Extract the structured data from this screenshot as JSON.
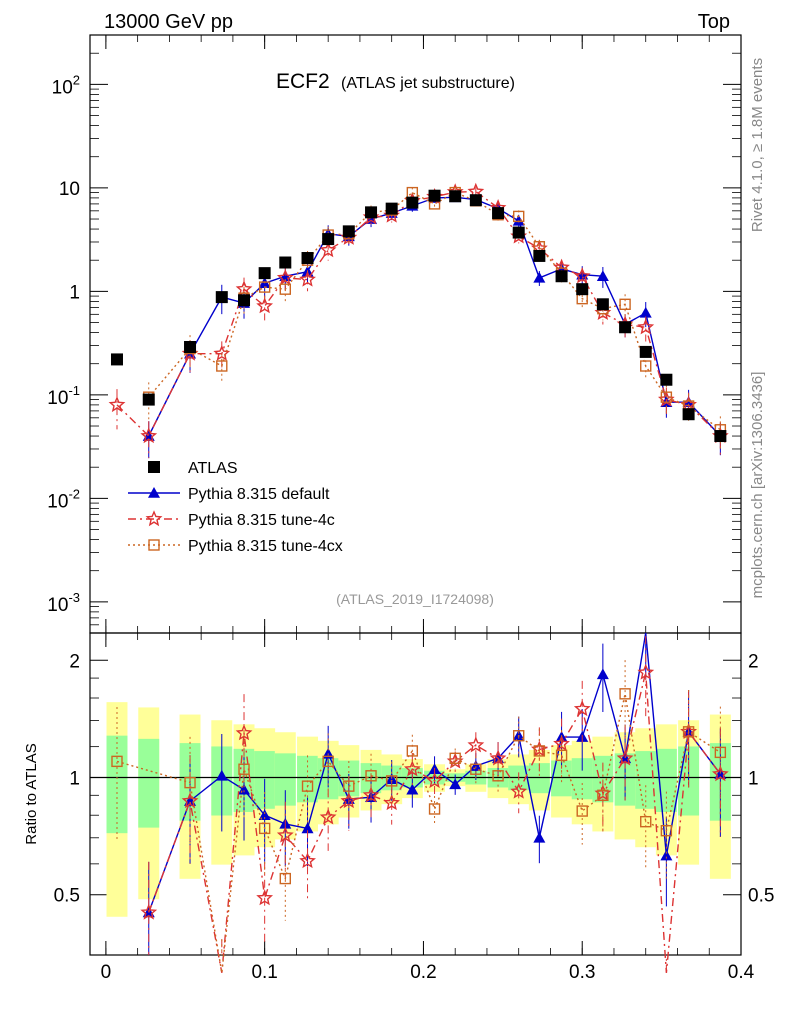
{
  "header": {
    "left_title": "13000 GeV pp",
    "right_title": "Top"
  },
  "side_labels": {
    "rivet": "Rivet 4.1.0, ≥ 1.8M events",
    "mcplots": "mcplots.cern.ch [arXiv:1306.3436]"
  },
  "chart_data": {
    "type": "line",
    "title": "ECF2",
    "subtitle": "(ATLAS jet substructure)",
    "analysis_tag": "(ATLAS_2019_I1724098)",
    "xlim": [
      -0.01,
      0.4
    ],
    "ylim": [
      0.0005,
      300
    ],
    "yscale": "log",
    "x_ticks": [
      "0",
      "0.1",
      "0.2",
      "0.3",
      "0.4"
    ],
    "x_tick_values": [
      0,
      0.1,
      0.2,
      0.3,
      0.4
    ],
    "y_tick_labels": [
      "10^-3",
      "10^-2",
      "10^-1",
      "1",
      "10",
      "10^2"
    ],
    "ratio_ylabel": "Ratio to ATLAS",
    "ratio_ylim": [
      0.35,
      2.35
    ],
    "ratio_ticks": [
      "0.5",
      "1",
      "2"
    ],
    "ratio_tick_values": [
      0.5,
      1,
      2
    ],
    "legend": [
      "ATLAS",
      "Pythia 8.315 default",
      "Pythia 8.315 tune-4c",
      "Pythia 8.315 tune-4cx"
    ],
    "series": [
      {
        "name": "ATLAS",
        "color": "#000000",
        "x": [
          0.007,
          0.027,
          0.053,
          0.073,
          0.087,
          0.1,
          0.113,
          0.127,
          0.14,
          0.153,
          0.167,
          0.18,
          0.193,
          0.207,
          0.22,
          0.233,
          0.247,
          0.26,
          0.273,
          0.287,
          0.3,
          0.313,
          0.327,
          0.34,
          0.353,
          0.367,
          0.387
        ],
        "y": [
          0.22,
          0.09,
          0.29,
          0.88,
          0.82,
          1.5,
          1.9,
          2.1,
          3.2,
          3.8,
          5.8,
          6.3,
          7.2,
          8.4,
          8.3,
          7.6,
          5.7,
          3.7,
          2.2,
          1.4,
          1.05,
          0.75,
          0.45,
          0.26,
          0.14,
          0.065,
          0.04
        ]
      },
      {
        "name": "Pythia 8.315 default",
        "color": "#0000cc",
        "x": [
          0.027,
          0.053,
          0.073,
          0.087,
          0.1,
          0.113,
          0.127,
          0.14,
          0.153,
          0.167,
          0.18,
          0.193,
          0.207,
          0.22,
          0.233,
          0.247,
          0.26,
          0.273,
          0.287,
          0.3,
          0.313,
          0.327,
          0.34,
          0.353,
          0.367,
          0.387
        ],
        "y": [
          0.04,
          0.25,
          0.88,
          0.77,
          1.2,
          1.4,
          1.55,
          3.6,
          3.4,
          5.0,
          5.7,
          6.7,
          8.0,
          8.1,
          7.7,
          6.3,
          4.8,
          1.35,
          1.65,
          1.45,
          1.4,
          0.48,
          0.62,
          0.085,
          0.085,
          0.04
        ]
      },
      {
        "name": "Pythia 8.315 tune-4c",
        "color": "#dd3333",
        "x": [
          0.007,
          0.027,
          0.053,
          0.073,
          0.087,
          0.1,
          0.113,
          0.127,
          0.14,
          0.153,
          0.167,
          0.18,
          0.193,
          0.207,
          0.22,
          0.233,
          0.247,
          0.26,
          0.273,
          0.287,
          0.3,
          0.313,
          0.327,
          0.34,
          0.353,
          0.367,
          0.387
        ],
        "y": [
          0.08,
          0.04,
          0.25,
          0.25,
          1.05,
          0.72,
          1.35,
          1.3,
          2.5,
          3.3,
          5.2,
          5.4,
          7.5,
          8.2,
          9.1,
          9.2,
          6.4,
          3.4,
          2.6,
          1.7,
          1.4,
          0.62,
          0.48,
          0.45,
          0.09,
          0.08,
          0.04
        ]
      },
      {
        "name": "Pythia 8.315 tune-4cx",
        "color": "#cc6622",
        "x": [
          0.027,
          0.053,
          0.073,
          0.087,
          0.1,
          0.113,
          0.127,
          0.14,
          0.153,
          0.167,
          0.18,
          0.193,
          0.207,
          0.22,
          0.233,
          0.247,
          0.26,
          0.273,
          0.287,
          0.3,
          0.313,
          0.327,
          0.34,
          0.353,
          0.367,
          0.387
        ],
        "y": [
          0.095,
          0.28,
          0.19,
          0.86,
          1.1,
          1.05,
          2.0,
          3.5,
          3.6,
          5.8,
          6.1,
          9.0,
          7.0,
          9.0,
          7.5,
          5.5,
          5.3,
          2.7,
          1.5,
          0.85,
          0.68,
          0.75,
          0.19,
          0.095,
          0.078,
          0.046
        ]
      }
    ],
    "ratio_series": [
      {
        "name": "Pythia 8.315 default",
        "color": "#0000cc",
        "x": [
          0.027,
          0.053,
          0.073,
          0.087,
          0.1,
          0.113,
          0.127,
          0.14,
          0.153,
          0.167,
          0.18,
          0.193,
          0.207,
          0.22,
          0.233,
          0.247,
          0.26,
          0.273,
          0.287,
          0.3,
          0.313,
          0.327,
          0.34,
          0.353,
          0.367,
          0.387
        ],
        "y": [
          0.45,
          0.87,
          1.01,
          0.93,
          0.8,
          0.76,
          0.74,
          1.15,
          0.88,
          0.89,
          0.99,
          0.93,
          1.05,
          0.96,
          1.07,
          1.12,
          1.28,
          0.7,
          1.27,
          1.27,
          1.84,
          1.12,
          2.36,
          0.63,
          1.31,
          1.02
        ]
      },
      {
        "name": "Pythia 8.315 tune-4c",
        "color": "#dd3333",
        "x": [
          0.027,
          0.053,
          0.073,
          0.087,
          0.1,
          0.113,
          0.127,
          0.14,
          0.153,
          0.167,
          0.18,
          0.193,
          0.207,
          0.22,
          0.233,
          0.247,
          0.26,
          0.273,
          0.287,
          0.3,
          0.313,
          0.327,
          0.34,
          0.353,
          0.367,
          0.387
        ],
        "y": [
          0.45,
          0.87,
          0.3,
          1.3,
          0.49,
          0.71,
          0.61,
          0.79,
          0.87,
          0.9,
          0.86,
          1.05,
          0.98,
          1.1,
          1.21,
          1.12,
          0.92,
          1.18,
          1.22,
          1.5,
          0.91,
          1.12,
          1.86,
          0.25,
          1.31,
          1.02
        ]
      },
      {
        "name": "Pythia 8.315 tune-4cx",
        "color": "#cc6622",
        "x": [
          0.007,
          0.053,
          0.073,
          0.087,
          0.1,
          0.113,
          0.127,
          0.14,
          0.153,
          0.167,
          0.18,
          0.193,
          0.207,
          0.22,
          0.233,
          0.247,
          0.26,
          0.273,
          0.287,
          0.3,
          0.313,
          0.327,
          0.34,
          0.353,
          0.367,
          0.387
        ],
        "y": [
          1.1,
          0.97,
          0.3,
          1.05,
          0.74,
          0.55,
          0.95,
          1.1,
          0.95,
          1.01,
          0.98,
          1.17,
          0.83,
          1.12,
          1.05,
          1.01,
          1.28,
          1.17,
          1.14,
          0.82,
          0.9,
          1.64,
          0.77,
          0.73,
          1.31,
          1.16
        ]
      }
    ]
  }
}
